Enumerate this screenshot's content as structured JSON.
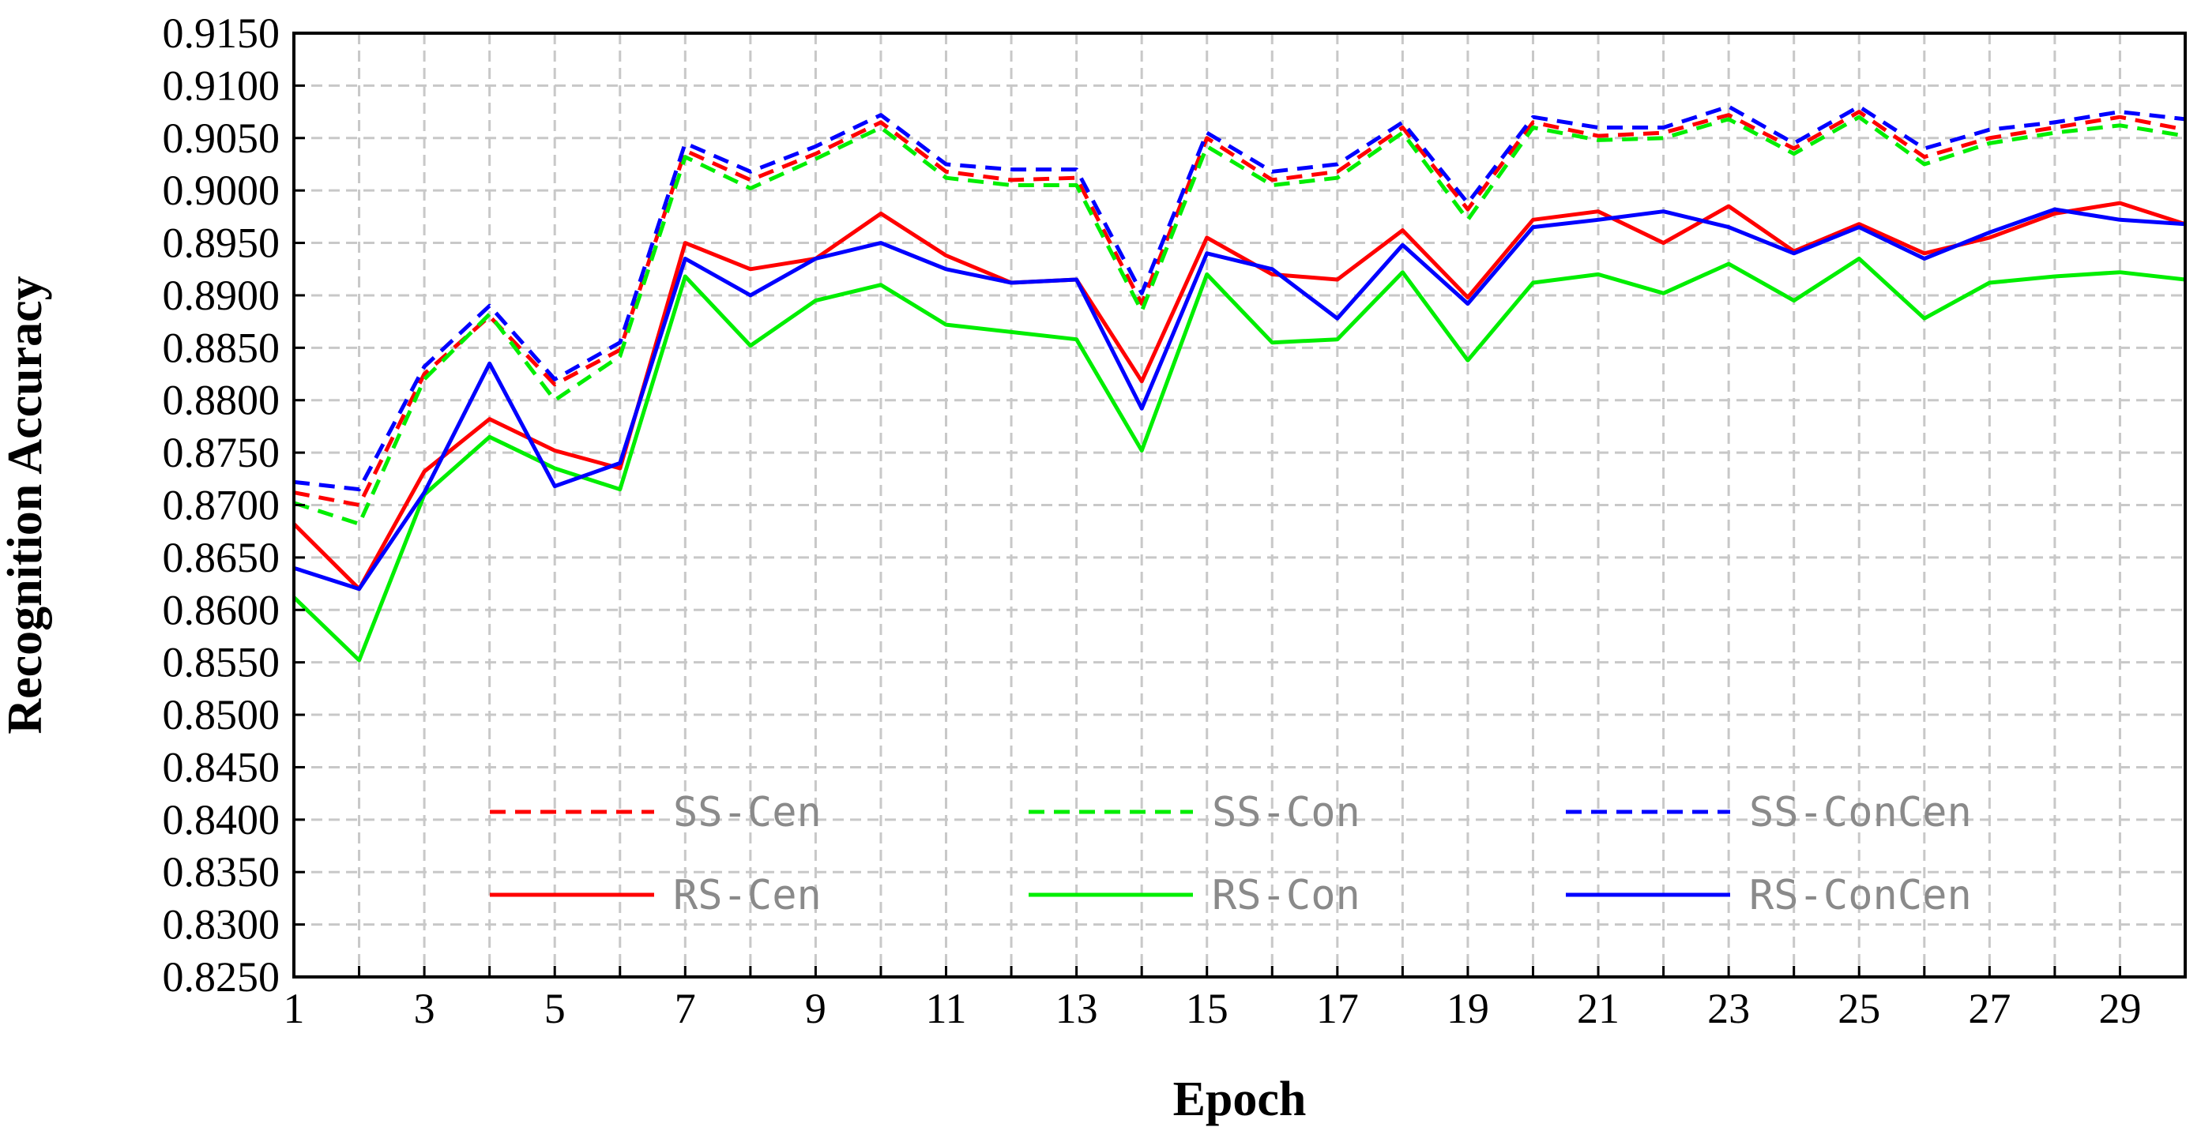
{
  "chart_data": {
    "type": "line",
    "title": "",
    "xlabel": "Epoch",
    "ylabel": "Recognition Accuracy",
    "xlim": [
      1,
      30
    ],
    "ylim": [
      0.825,
      0.915
    ],
    "x_ticks": [
      "1",
      "3",
      "5",
      "7",
      "9",
      "11",
      "13",
      "15",
      "17",
      "19",
      "21",
      "23",
      "25",
      "27",
      "29"
    ],
    "y_ticks": [
      "0.8250",
      "0.8300",
      "0.8350",
      "0.8400",
      "0.8450",
      "0.8500",
      "0.8550",
      "0.8600",
      "0.8650",
      "0.8700",
      "0.8750",
      "0.8800",
      "0.8850",
      "0.8900",
      "0.8950",
      "0.9000",
      "0.9050",
      "0.9100",
      "0.9150"
    ],
    "grid": true,
    "legend_position": "lower-center inside plot, 3 columns",
    "x": [
      1,
      2,
      3,
      4,
      5,
      6,
      7,
      8,
      9,
      10,
      11,
      12,
      13,
      14,
      15,
      16,
      17,
      18,
      19,
      20,
      21,
      22,
      23,
      24,
      25,
      26,
      27,
      28,
      29,
      30
    ],
    "series": [
      {
        "name": "SS-Cen",
        "color": "#ff0000",
        "dash": "dashed",
        "values": [
          0.8712,
          0.87,
          0.8825,
          0.888,
          0.8815,
          0.8848,
          0.9038,
          0.901,
          0.9035,
          0.9065,
          0.9018,
          0.901,
          0.9012,
          0.8892,
          0.905,
          0.901,
          0.9018,
          0.906,
          0.8982,
          0.9065,
          0.9052,
          0.9055,
          0.9072,
          0.904,
          0.9075,
          0.9032,
          0.905,
          0.906,
          0.907,
          0.9058
        ]
      },
      {
        "name": "SS-Con",
        "color": "#00ee00",
        "dash": "dashed",
        "values": [
          0.8702,
          0.8682,
          0.882,
          0.8882,
          0.88,
          0.8842,
          0.9032,
          0.9002,
          0.903,
          0.906,
          0.9012,
          0.9005,
          0.9005,
          0.8885,
          0.9042,
          0.9005,
          0.9012,
          0.9055,
          0.8972,
          0.906,
          0.9048,
          0.905,
          0.9068,
          0.9035,
          0.907,
          0.9025,
          0.9045,
          0.9055,
          0.9062,
          0.9052
        ]
      },
      {
        "name": "SS-ConCen",
        "color": "#0000ff",
        "dash": "dashed",
        "values": [
          0.8722,
          0.8715,
          0.8832,
          0.889,
          0.882,
          0.8855,
          0.9045,
          0.9018,
          0.9042,
          0.9072,
          0.9025,
          0.902,
          0.902,
          0.8902,
          0.9055,
          0.9018,
          0.9025,
          0.9065,
          0.8988,
          0.907,
          0.906,
          0.906,
          0.908,
          0.9045,
          0.908,
          0.904,
          0.9058,
          0.9065,
          0.9075,
          0.9068
        ]
      },
      {
        "name": "RS-Cen",
        "color": "#ff0000",
        "dash": "solid",
        "values": [
          0.8682,
          0.862,
          0.8732,
          0.8782,
          0.8752,
          0.8735,
          0.895,
          0.8925,
          0.8935,
          0.8978,
          0.8938,
          0.8912,
          0.8915,
          0.8818,
          0.8955,
          0.892,
          0.8915,
          0.8962,
          0.8898,
          0.8972,
          0.898,
          0.895,
          0.8985,
          0.8942,
          0.8968,
          0.894,
          0.8955,
          0.8978,
          0.8988,
          0.8968
        ]
      },
      {
        "name": "RS-Con",
        "color": "#00ee00",
        "dash": "solid",
        "values": [
          0.8612,
          0.8552,
          0.871,
          0.8765,
          0.8735,
          0.8715,
          0.8918,
          0.8852,
          0.8895,
          0.891,
          0.8872,
          0.8865,
          0.8858,
          0.8752,
          0.892,
          0.8855,
          0.8858,
          0.8922,
          0.8838,
          0.8912,
          0.892,
          0.8902,
          0.893,
          0.8895,
          0.8935,
          0.8878,
          0.8912,
          0.8918,
          0.8922,
          0.8915
        ]
      },
      {
        "name": "RS-ConCen",
        "color": "#0000ff",
        "dash": "solid",
        "values": [
          0.864,
          0.862,
          0.8712,
          0.8835,
          0.8718,
          0.874,
          0.8935,
          0.89,
          0.8935,
          0.895,
          0.8925,
          0.8912,
          0.8915,
          0.8792,
          0.894,
          0.8925,
          0.8878,
          0.8948,
          0.8892,
          0.8965,
          0.8972,
          0.898,
          0.8965,
          0.894,
          0.8965,
          0.8935,
          0.896,
          0.8982,
          0.8972,
          0.8968
        ]
      }
    ]
  }
}
